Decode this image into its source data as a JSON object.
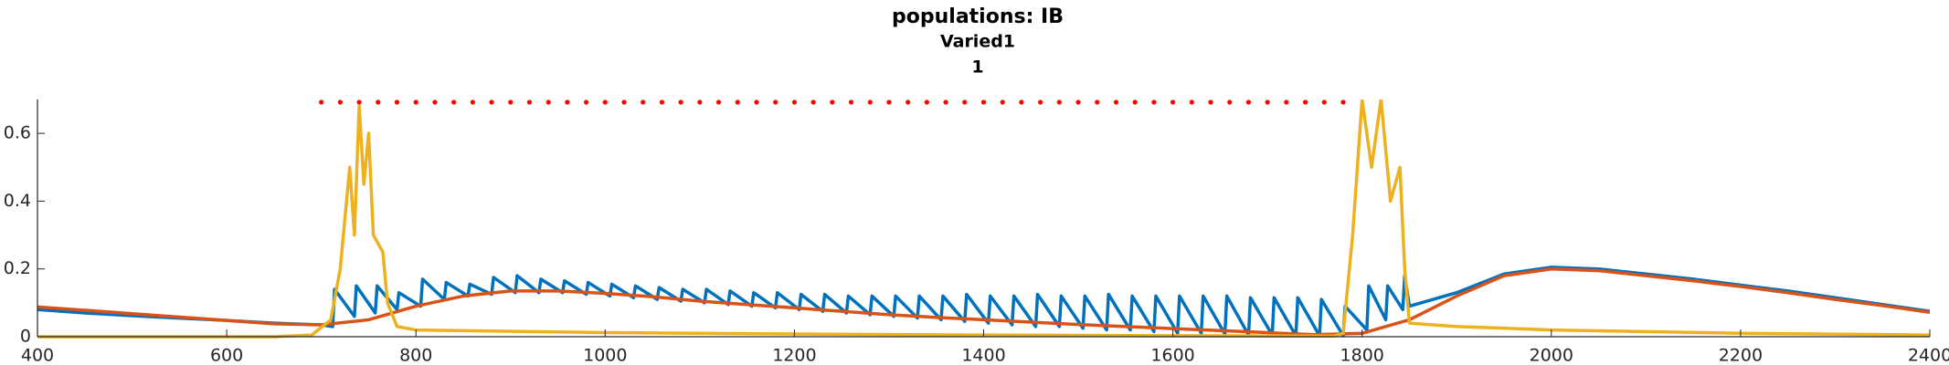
{
  "chart_data": {
    "type": "line",
    "title": "populations: IB",
    "subtitle": "Varied1",
    "subtitle2": "1",
    "xlim": [
      400,
      2400
    ],
    "xticks": [
      400,
      600,
      800,
      1000,
      1200,
      1400,
      1600,
      1800,
      2000,
      2200,
      2400
    ],
    "ylim": [
      0,
      0.7
    ],
    "yticks": [
      0,
      0.2,
      0.4,
      0.6
    ],
    "grid": false,
    "series": [
      {
        "color": "#0072bd",
        "x": [
          400,
          450,
          500,
          550,
          600,
          650,
          700,
          712,
          714,
          735,
          737,
          757,
          759,
          780,
          782,
          805,
          807,
          830,
          832,
          855,
          857,
          880,
          882,
          905,
          907,
          930,
          932,
          955,
          957,
          980,
          982,
          1005,
          1007,
          1030,
          1032,
          1055,
          1057,
          1080,
          1082,
          1105,
          1107,
          1130,
          1132,
          1155,
          1157,
          1180,
          1182,
          1205,
          1207,
          1230,
          1232,
          1255,
          1257,
          1280,
          1282,
          1305,
          1307,
          1330,
          1332,
          1355,
          1357,
          1380,
          1382,
          1405,
          1407,
          1430,
          1432,
          1455,
          1457,
          1480,
          1482,
          1505,
          1507,
          1530,
          1532,
          1555,
          1557,
          1580,
          1582,
          1605,
          1607,
          1630,
          1632,
          1655,
          1657,
          1680,
          1682,
          1705,
          1707,
          1730,
          1732,
          1755,
          1757,
          1780,
          1782,
          1805,
          1807,
          1825,
          1827,
          1843,
          1845,
          1850,
          1900,
          1950,
          2000,
          2050,
          2100,
          2150,
          2200,
          2250,
          2300,
          2350,
          2400
        ],
        "values": [
          0.08,
          0.07,
          0.062,
          0.055,
          0.048,
          0.04,
          0.035,
          0.03,
          0.14,
          0.06,
          0.15,
          0.07,
          0.15,
          0.08,
          0.13,
          0.09,
          0.17,
          0.11,
          0.16,
          0.12,
          0.155,
          0.125,
          0.175,
          0.13,
          0.18,
          0.13,
          0.17,
          0.13,
          0.165,
          0.125,
          0.16,
          0.12,
          0.155,
          0.115,
          0.15,
          0.11,
          0.145,
          0.105,
          0.14,
          0.1,
          0.14,
          0.095,
          0.135,
          0.09,
          0.13,
          0.085,
          0.13,
          0.08,
          0.125,
          0.075,
          0.125,
          0.07,
          0.12,
          0.065,
          0.12,
          0.06,
          0.12,
          0.055,
          0.12,
          0.05,
          0.12,
          0.045,
          0.125,
          0.04,
          0.12,
          0.035,
          0.12,
          0.03,
          0.125,
          0.03,
          0.12,
          0.025,
          0.12,
          0.02,
          0.125,
          0.02,
          0.12,
          0.015,
          0.12,
          0.01,
          0.12,
          0.01,
          0.12,
          0.008,
          0.12,
          0.005,
          0.115,
          0.005,
          0.115,
          0.003,
          0.115,
          0.003,
          0.11,
          0.003,
          0.09,
          0.02,
          0.15,
          0.05,
          0.15,
          0.08,
          0.18,
          0.09,
          0.13,
          0.185,
          0.205,
          0.2,
          0.185,
          0.17,
          0.152,
          0.135,
          0.115,
          0.095,
          0.075
        ]
      },
      {
        "color": "#d95319",
        "x": [
          400,
          450,
          500,
          550,
          600,
          650,
          700,
          750,
          800,
          850,
          900,
          950,
          1000,
          1050,
          1100,
          1150,
          1200,
          1250,
          1300,
          1350,
          1400,
          1450,
          1500,
          1550,
          1600,
          1650,
          1700,
          1750,
          1800,
          1850,
          1900,
          1950,
          2000,
          2050,
          2100,
          2150,
          2200,
          2250,
          2300,
          2350,
          2400
        ],
        "values": [
          0.088,
          0.078,
          0.068,
          0.058,
          0.048,
          0.038,
          0.035,
          0.05,
          0.09,
          0.12,
          0.135,
          0.135,
          0.128,
          0.118,
          0.105,
          0.095,
          0.085,
          0.075,
          0.065,
          0.057,
          0.05,
          0.043,
          0.036,
          0.03,
          0.024,
          0.018,
          0.012,
          0.006,
          0.01,
          0.05,
          0.12,
          0.18,
          0.2,
          0.195,
          0.18,
          0.165,
          0.148,
          0.13,
          0.11,
          0.092,
          0.072
        ]
      },
      {
        "color": "#edb120",
        "x": [
          400,
          650,
          690,
          710,
          720,
          730,
          735,
          740,
          745,
          750,
          755,
          765,
          770,
          780,
          800,
          1000,
          1200,
          1400,
          1600,
          1770,
          1780,
          1790,
          1800,
          1810,
          1820,
          1830,
          1840,
          1845,
          1850,
          1900,
          2000,
          2200,
          2400
        ],
        "values": [
          0,
          0,
          0.005,
          0.05,
          0.2,
          0.5,
          0.3,
          0.68,
          0.45,
          0.6,
          0.3,
          0.25,
          0.1,
          0.03,
          0.02,
          0.012,
          0.008,
          0.005,
          0.003,
          0.002,
          0.01,
          0.3,
          0.7,
          0.5,
          0.7,
          0.4,
          0.5,
          0.2,
          0.04,
          0.03,
          0.02,
          0.01,
          0.005
        ]
      },
      {
        "color": "#ff0000",
        "marker": "dot",
        "x": [
          700,
          720,
          740,
          760,
          780,
          800,
          820,
          840,
          860,
          880,
          900,
          920,
          940,
          960,
          980,
          1000,
          1020,
          1040,
          1060,
          1080,
          1100,
          1120,
          1140,
          1160,
          1180,
          1200,
          1220,
          1240,
          1260,
          1280,
          1300,
          1320,
          1340,
          1360,
          1380,
          1400,
          1420,
          1440,
          1460,
          1480,
          1500,
          1520,
          1540,
          1560,
          1580,
          1600,
          1620,
          1640,
          1660,
          1680,
          1700,
          1720,
          1740,
          1760,
          1780
        ],
        "values": [
          0.7,
          0.7,
          0.7,
          0.7,
          0.7,
          0.7,
          0.7,
          0.7,
          0.7,
          0.7,
          0.7,
          0.7,
          0.7,
          0.7,
          0.7,
          0.7,
          0.7,
          0.7,
          0.7,
          0.7,
          0.7,
          0.7,
          0.7,
          0.7,
          0.7,
          0.7,
          0.7,
          0.7,
          0.7,
          0.7,
          0.7,
          0.7,
          0.7,
          0.7,
          0.7,
          0.7,
          0.7,
          0.7,
          0.7,
          0.7,
          0.7,
          0.7,
          0.7,
          0.7,
          0.7,
          0.7,
          0.7,
          0.7,
          0.7,
          0.7,
          0.7,
          0.7,
          0.7,
          0.7,
          0.7
        ]
      }
    ]
  }
}
